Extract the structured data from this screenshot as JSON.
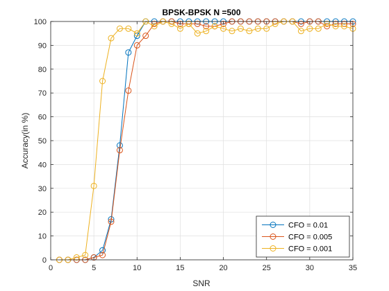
{
  "chart_data": {
    "type": "line",
    "title": "BPSK-BPSK N =500",
    "xlabel": "SNR",
    "ylabel": "Accuracy(in %)",
    "xlim": [
      0,
      35
    ],
    "ylim": [
      0,
      100
    ],
    "xticks": [
      0,
      5,
      10,
      15,
      20,
      25,
      30,
      35
    ],
    "yticks": [
      0,
      10,
      20,
      30,
      40,
      50,
      60,
      70,
      80,
      90,
      100
    ],
    "grid": true,
    "legend_position": "bottom-right",
    "marker": "circle",
    "series": [
      {
        "name": "CFO = 0.01",
        "color": "#0072BD",
        "x": [
          1,
          2,
          3,
          4,
          5,
          6,
          7,
          8,
          9,
          10,
          11,
          12,
          13,
          14,
          15,
          16,
          17,
          18,
          19,
          20,
          21,
          22,
          23,
          24,
          25,
          26,
          27,
          28,
          29,
          30,
          31,
          32,
          33,
          34,
          35
        ],
        "y": [
          0,
          0,
          0,
          0,
          1,
          4,
          17,
          48,
          87,
          94,
          100,
          100,
          100,
          100,
          100,
          100,
          100,
          100,
          100,
          100,
          100,
          100,
          100,
          100,
          100,
          100,
          100,
          100,
          100,
          100,
          100,
          100,
          100,
          100,
          100
        ]
      },
      {
        "name": "CFO = 0.005",
        "color": "#D95319",
        "x": [
          1,
          2,
          3,
          4,
          5,
          6,
          7,
          8,
          9,
          10,
          11,
          12,
          13,
          14,
          15,
          16,
          17,
          18,
          19,
          20,
          21,
          22,
          23,
          24,
          25,
          26,
          27,
          28,
          29,
          30,
          31,
          32,
          33,
          34,
          35
        ],
        "y": [
          0,
          0,
          0,
          0,
          1,
          2,
          16,
          46,
          71,
          90,
          94,
          99,
          100,
          100,
          99,
          99,
          99,
          98,
          98,
          99,
          100,
          100,
          100,
          100,
          100,
          100,
          100,
          100,
          99,
          100,
          100,
          98,
          99,
          99,
          99
        ]
      },
      {
        "name": "CFO = 0.001",
        "color": "#EDB120",
        "x": [
          1,
          2,
          3,
          4,
          5,
          6,
          7,
          8,
          9,
          10,
          11,
          12,
          13,
          14,
          15,
          16,
          17,
          18,
          19,
          20,
          21,
          22,
          23,
          24,
          25,
          26,
          27,
          28,
          29,
          30,
          31,
          32,
          33,
          34,
          35
        ],
        "y": [
          0,
          0,
          1,
          2,
          31,
          75,
          93,
          97,
          97,
          95,
          100,
          98,
          100,
          99,
          97,
          99,
          95,
          96,
          98,
          97,
          96,
          97,
          96,
          97,
          97,
          99,
          100,
          100,
          96,
          97,
          97,
          99,
          98,
          98,
          97
        ]
      }
    ]
  }
}
